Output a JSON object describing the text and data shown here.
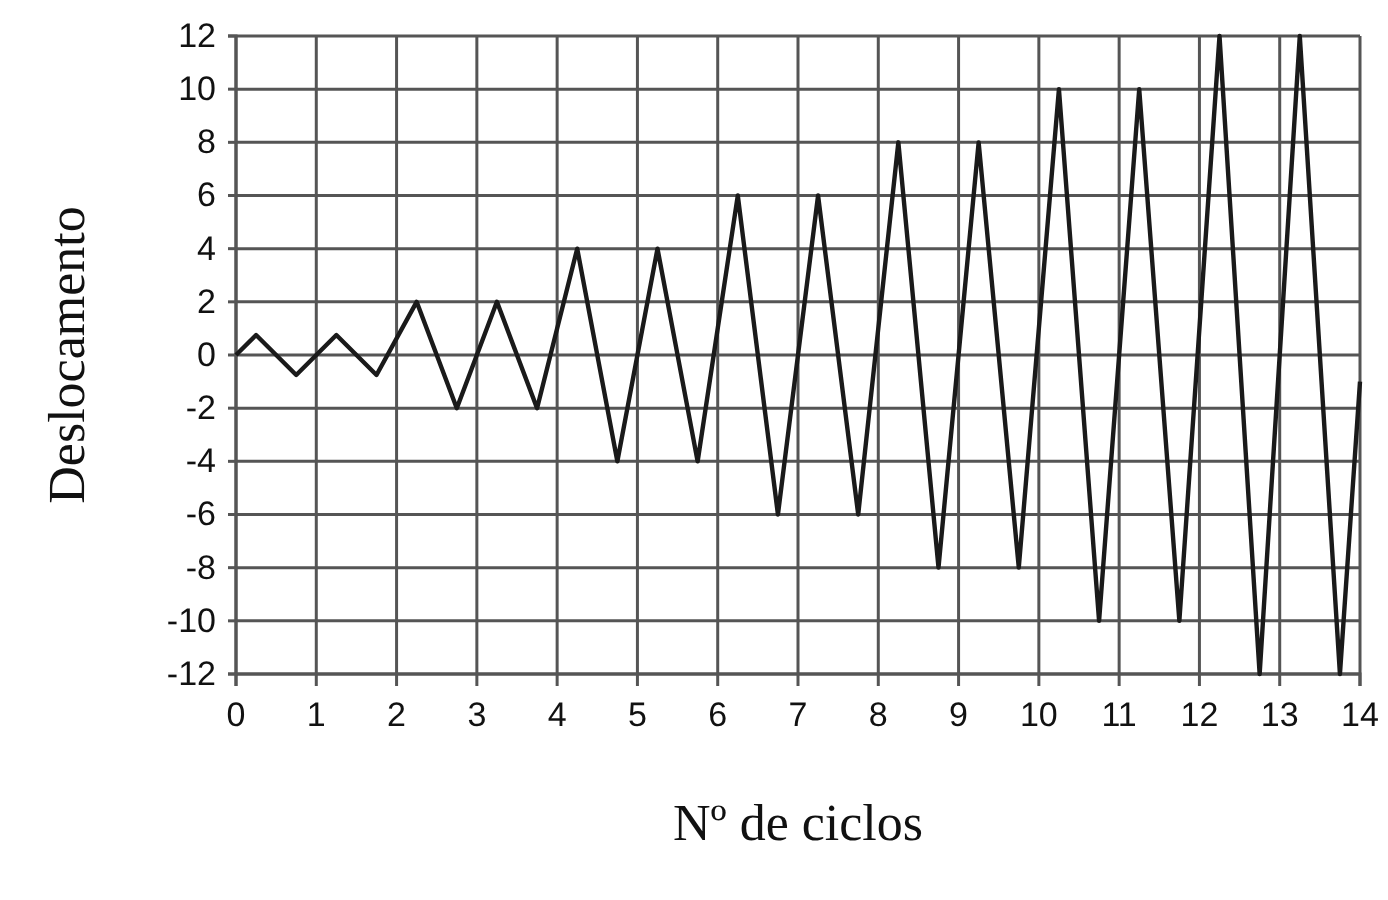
{
  "chart_data": {
    "type": "line",
    "xlabel": "Nº de ciclos",
    "ylabel": "Deslocamento",
    "x": [
      0,
      0.25,
      0.75,
      1.25,
      1.75,
      2.25,
      2.75,
      3.25,
      3.75,
      4.25,
      4.75,
      5.25,
      5.75,
      6.25,
      6.75,
      7.25,
      7.75,
      8.25,
      8.75,
      9.25,
      9.75,
      10.25,
      10.75,
      11.25,
      11.75,
      12.25,
      12.75,
      13.25,
      13.75,
      14
    ],
    "series": [
      {
        "color": "#1a1a1a",
        "values": [
          0,
          0.75,
          -0.75,
          0.75,
          -0.75,
          2,
          -2,
          2,
          -2,
          4,
          -4,
          4,
          -4,
          6,
          -6,
          6,
          -6,
          8,
          -8,
          8,
          -8,
          10,
          -10,
          10,
          -10,
          12,
          -12,
          12,
          -12,
          -1
        ]
      }
    ],
    "xlim": [
      0,
      14
    ],
    "xticks": [
      0,
      1,
      2,
      3,
      4,
      5,
      6,
      7,
      8,
      9,
      10,
      11,
      12,
      13,
      14
    ],
    "ylim": [
      -12,
      12
    ],
    "yticks": [
      -12,
      -10,
      -8,
      -6,
      -4,
      -2,
      0,
      2,
      4,
      6,
      8,
      10,
      12
    ],
    "grid": true,
    "marker": "none",
    "line_style": "solid"
  }
}
